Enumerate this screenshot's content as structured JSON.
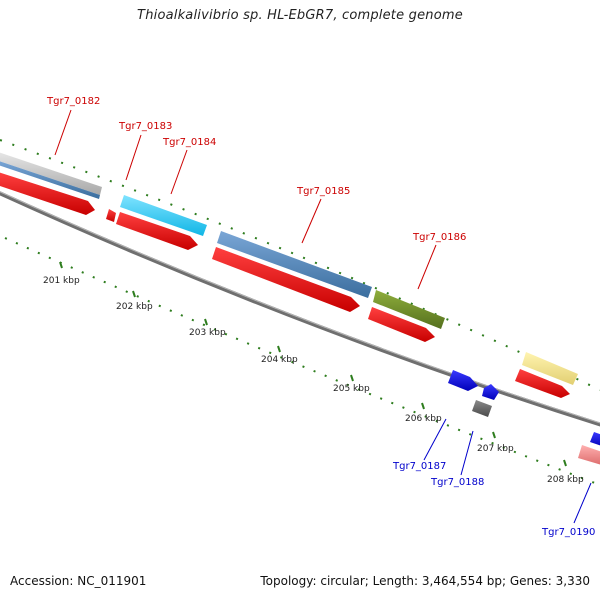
{
  "title": "Thioalkalivibrio sp. HL-EbGR7, complete genome",
  "footer": {
    "accession": "Accession: NC_011901",
    "summary": "Topology: circular; Length: 3,464,554 bp; Genes: 3,330"
  },
  "colors": {
    "top_strand_label": "#cc0000",
    "bottom_strand_label": "#0000cc",
    "backbone": "#777777",
    "tick": "#2e7d1e",
    "scale_text": "#222222"
  },
  "scale_labels": [
    "201 kbp",
    "202 kbp",
    "203 kbp",
    "204 kbp",
    "205 kbp",
    "206 kbp",
    "207 kbp",
    "208 kbp"
  ],
  "genes": [
    {
      "label": "Tgr7_0182",
      "strand": "top"
    },
    {
      "label": "Tgr7_0183",
      "strand": "top"
    },
    {
      "label": "Tgr7_0184",
      "strand": "top"
    },
    {
      "label": "Tgr7_0185",
      "strand": "top"
    },
    {
      "label": "Tgr7_0186",
      "strand": "top"
    },
    {
      "label": "Tgr7_0187",
      "strand": "bottom"
    },
    {
      "label": "Tgr7_0188",
      "strand": "bottom"
    },
    {
      "label": "Tgr7_0190",
      "strand": "bottom"
    }
  ]
}
